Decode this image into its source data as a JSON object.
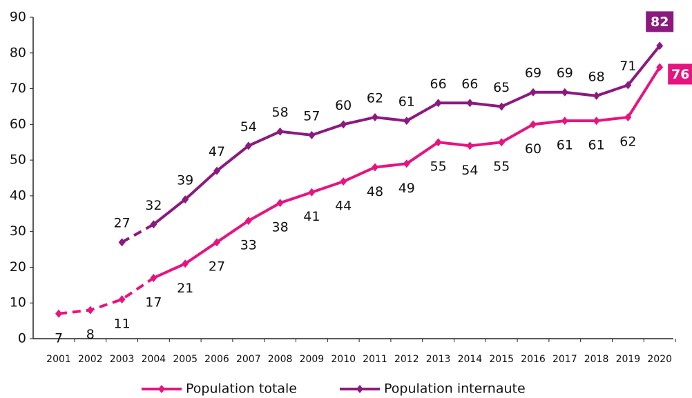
{
  "chart_data": {
    "type": "line",
    "categories": [
      "2001",
      "2002",
      "2003",
      "2004",
      "2005",
      "2006",
      "2007",
      "2008",
      "2009",
      "2010",
      "2011",
      "2012",
      "2013",
      "2014",
      "2015",
      "2016",
      "2017",
      "2018",
      "2019",
      "2020"
    ],
    "series": [
      {
        "name": "Population totale",
        "color": "#e6147f",
        "dashed_until": "2004",
        "label_side": "below",
        "values": [
          7,
          8,
          11,
          17,
          21,
          27,
          33,
          38,
          41,
          44,
          48,
          49,
          55,
          54,
          55,
          60,
          61,
          61,
          62,
          76
        ]
      },
      {
        "name": "Population internaute",
        "color": "#8b1a7f",
        "dashed_until": "2004",
        "label_side": "above",
        "values": [
          null,
          null,
          27,
          32,
          39,
          47,
          54,
          58,
          57,
          60,
          62,
          61,
          66,
          66,
          65,
          69,
          69,
          68,
          71,
          82
        ]
      }
    ],
    "ylim": [
      0,
      90
    ],
    "yticks": [
      0,
      10,
      20,
      30,
      40,
      50,
      60,
      70,
      80,
      90
    ],
    "grid": false
  }
}
